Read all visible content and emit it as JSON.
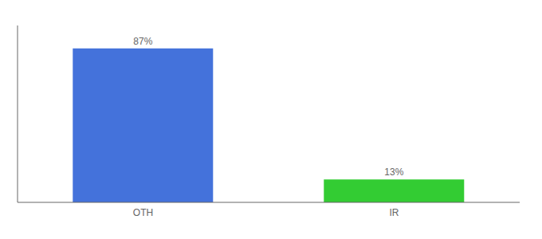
{
  "chart_data": {
    "type": "bar",
    "categories": [
      "OTH",
      "IR"
    ],
    "values": [
      87,
      13
    ],
    "value_labels": [
      "87%",
      "13%"
    ],
    "colors": [
      "#4472db",
      "#33cc33"
    ],
    "ylim": [
      0,
      100
    ],
    "data_labels": true,
    "tick_labels": "x"
  }
}
